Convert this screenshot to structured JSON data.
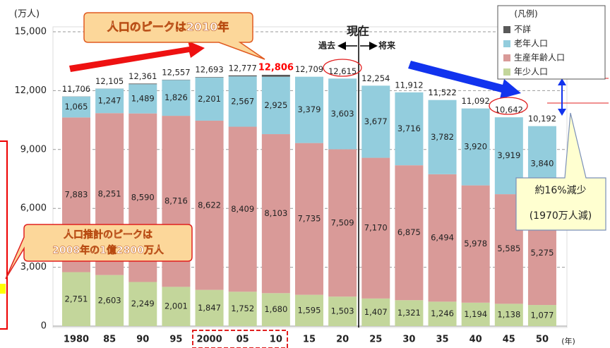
{
  "chart_data": {
    "type": "bar",
    "stacked": true,
    "y_unit": "(万人)",
    "x_unit": "(年)",
    "categories": [
      "1980",
      "85",
      "90",
      "95",
      "2000",
      "05",
      "10",
      "15",
      "20",
      "25",
      "30",
      "35",
      "40",
      "45",
      "50"
    ],
    "series": [
      {
        "name": "年少人口",
        "color": "#c3d69b",
        "values": [
          2751,
          2603,
          2249,
          2001,
          1847,
          1752,
          1680,
          1595,
          1503,
          1407,
          1321,
          1246,
          1194,
          1138,
          1077
        ],
        "value_labels": [
          "2,751",
          "2,603",
          "2,249",
          "2,001",
          "1,847",
          "1,752",
          "1,680",
          "1,595",
          "1,503",
          "1,407",
          "1,321",
          "1,246",
          "1,194",
          "1,138",
          "1,077"
        ]
      },
      {
        "name": "生産年齢人口",
        "color": "#d99a98",
        "values": [
          7883,
          8251,
          8590,
          8716,
          8622,
          8409,
          8103,
          7735,
          7509,
          7170,
          6875,
          6494,
          5978,
          5585,
          5275
        ],
        "value_labels": [
          "7,883",
          "8,251",
          "8,590",
          "8,716",
          "8,622",
          "8,409",
          "8,103",
          "7,735",
          "7,509",
          "7,170",
          "6,875",
          "6,494",
          "5,978",
          "5,585",
          "5,275"
        ]
      },
      {
        "name": "老年人口",
        "color": "#93cddd",
        "values": [
          1065,
          1247,
          1489,
          1826,
          2201,
          2567,
          2925,
          3379,
          3603,
          3677,
          3716,
          3782,
          3920,
          3919,
          3840
        ],
        "value_labels": [
          "1,065",
          "1,247",
          "1,489",
          "1,826",
          "2,201",
          "2,567",
          "2,925",
          "3,379",
          "3,603",
          "3,677",
          "3,716",
          "3,782",
          "3,920",
          "3,919",
          "3,840"
        ]
      },
      {
        "name": "不詳",
        "color": "#595959",
        "values": [
          7,
          4,
          33,
          14,
          23,
          49,
          98,
          0,
          0,
          0,
          0,
          0,
          0,
          0,
          0
        ]
      }
    ],
    "totals": {
      "values": [
        11706,
        12105,
        12361,
        12557,
        12693,
        12777,
        12806,
        12709,
        12615,
        12254,
        11912,
        11522,
        11092,
        10642,
        10192
      ],
      "value_labels": [
        "11,706",
        "12,105",
        "12,361",
        "12,557",
        "12,693",
        "12,777",
        "12,806",
        "12,709",
        "12,615",
        "12,254",
        "11,912",
        "11,522",
        "11,092",
        "10,642",
        "10,192"
      ]
    },
    "peak_color": "#ff0000",
    "ylim": [
      0,
      15000
    ],
    "yticks": [
      0,
      {
        "value": 3000,
        "label": "3,000"
      },
      {
        "value": 6000,
        "label": "6,000"
      },
      {
        "value": 9000,
        "label": "9,000"
      },
      {
        "value": 12000,
        "label": "12,000"
      },
      {
        "value": 15000,
        "label": "15,000"
      }
    ],
    "grid": true,
    "legend": {
      "title": "(凡例)",
      "position": "upper right"
    },
    "annotations": {
      "peak": "人口のピークは2010年",
      "now": "現在",
      "past": "過去",
      "future": "将来",
      "decline": "約16%減少",
      "decline_amount": "(1970万人減)",
      "estimate_1": "人口推計のピークは",
      "estimate_2": "2008年の1億2800万人"
    }
  }
}
